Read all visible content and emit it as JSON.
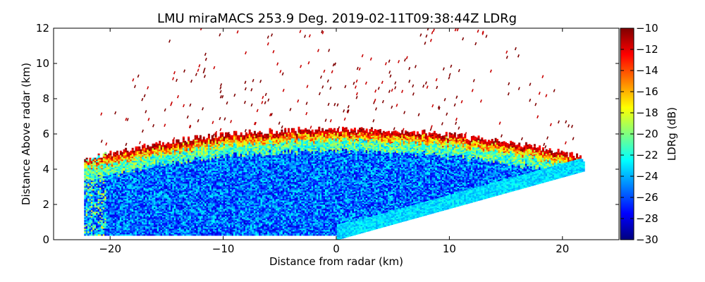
{
  "chart_data": {
    "type": "heatmap",
    "title": "LMU miraMACS 253.9 Deg. 2019-02-11T09:38:44Z  LDRg",
    "xlabel": "Distance from radar (km)",
    "ylabel": "Distance Above radar  (km)",
    "xlim": [
      -25,
      25
    ],
    "ylim": [
      0,
      12
    ],
    "xticks": [
      -20,
      -10,
      0,
      10,
      20
    ],
    "yticks": [
      0,
      2,
      4,
      6,
      8,
      10,
      12
    ],
    "colorbar": {
      "label": "LDRg (dB)",
      "range": [
        -30,
        -10
      ],
      "ticks": [
        -10,
        -12,
        -14,
        -16,
        -18,
        -20,
        -22,
        -24,
        -26,
        -28,
        -30
      ],
      "colormap": "jet"
    },
    "scan": {
      "left_edge_range_km": [
        -22.3,
        -21.7
      ],
      "right_edge_km": 21.9,
      "right_edge_top_km": 3.9,
      "cloud_top_km": 6.2,
      "cloud_top_min_km": 4.0,
      "typical_ldr_db": -26,
      "cloud_top_ldr_db": -11
    }
  },
  "colors": {
    "background": "#ffffff",
    "axes": "#000000"
  }
}
